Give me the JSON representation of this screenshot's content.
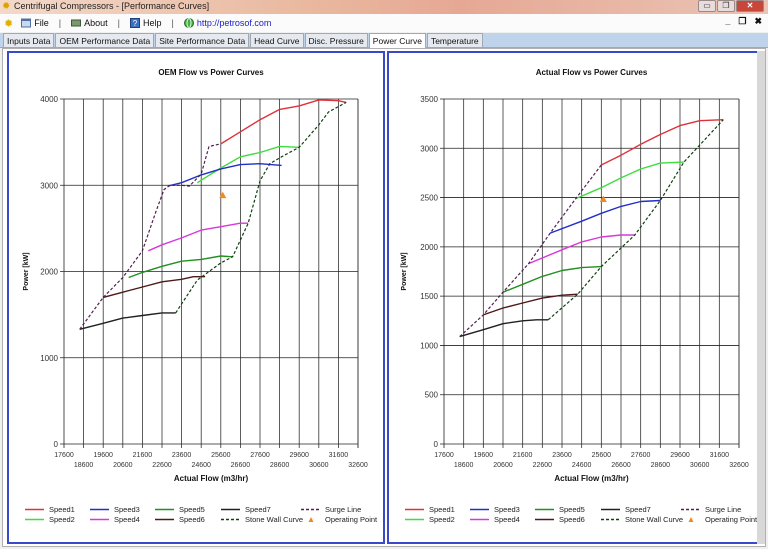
{
  "window": {
    "title": "Centrifugal Compressors - [Performance Curves]",
    "controls": [
      "minimize",
      "restore",
      "close"
    ]
  },
  "menu": {
    "items": [
      {
        "label": "File",
        "icon": "window-icon"
      },
      {
        "label": "About",
        "icon": "about-icon"
      },
      {
        "label": "Help",
        "icon": "help-icon"
      },
      {
        "label": "http://petrosof.com",
        "icon": "globe-icon"
      }
    ],
    "mdi_controls": [
      "_",
      "❐",
      "✖"
    ]
  },
  "tabs": [
    {
      "label": "Inputs Data",
      "active": false
    },
    {
      "label": "OEM Performance Data",
      "active": false
    },
    {
      "label": "Site Performance Data",
      "active": false
    },
    {
      "label": "Head Curve",
      "active": false
    },
    {
      "label": "Disc. Pressure",
      "active": false
    },
    {
      "label": "Power Curve",
      "active": true
    },
    {
      "label": "Temperature",
      "active": false
    }
  ],
  "colors": {
    "Speed1": "#e0303a",
    "Speed2": "#3fdc3f",
    "Speed3": "#2030c8",
    "Speed4": "#d838d8",
    "Speed5": "#209020",
    "Speed6": "#501818",
    "Speed7": "#202020",
    "Surge Line": "#502050",
    "Stone Wall Curve": "#104010",
    "Operating Point": "#f08a1c",
    "panel_border": "#3a49c9"
  },
  "legend": [
    {
      "label": "Speed1",
      "style": "solid"
    },
    {
      "label": "Speed2",
      "style": "solid"
    },
    {
      "label": "Speed3",
      "style": "solid"
    },
    {
      "label": "Speed4",
      "style": "solid"
    },
    {
      "label": "Speed5",
      "style": "solid"
    },
    {
      "label": "Speed6",
      "style": "solid"
    },
    {
      "label": "Speed7",
      "style": "solid"
    },
    {
      "label": "Stone Wall Curve",
      "style": "dashed"
    },
    {
      "label": "Surge Line",
      "style": "dashed"
    },
    {
      "label": "Operating Point",
      "style": "marker"
    }
  ],
  "chart_data": [
    {
      "type": "line",
      "title": "OEM Flow vs Power Curves",
      "xlabel": "Actual Flow (m3/hr)",
      "ylabel": "Power [kW]",
      "xlim": [
        17600,
        32600
      ],
      "ylim": [
        0,
        4000
      ],
      "xticks_top": [
        17600,
        19600,
        21600,
        23600,
        25600,
        27600,
        29600,
        31600
      ],
      "xticks_bottom": [
        18600,
        20600,
        22600,
        24600,
        26600,
        28600,
        30600,
        32600
      ],
      "yticks": [
        0,
        1000,
        2000,
        3000,
        4000
      ],
      "grid": true,
      "legend_position": "bottom",
      "series": [
        {
          "name": "Speed1",
          "points": [
            [
              25600,
              3480
            ],
            [
              26600,
              3620
            ],
            [
              27600,
              3760
            ],
            [
              28600,
              3880
            ],
            [
              29600,
              3920
            ],
            [
              30600,
              3990
            ],
            [
              31600,
              3980
            ],
            [
              32000,
              3960
            ]
          ]
        },
        {
          "name": "Speed2",
          "points": [
            [
              24400,
              3030
            ],
            [
              25600,
              3200
            ],
            [
              26600,
              3330
            ],
            [
              27600,
              3380
            ],
            [
              28600,
              3450
            ],
            [
              29600,
              3440
            ]
          ]
        },
        {
          "name": "Speed3",
          "points": [
            [
              22900,
              2990
            ],
            [
              23600,
              3030
            ],
            [
              24600,
              3120
            ],
            [
              25600,
              3190
            ],
            [
              26600,
              3240
            ],
            [
              27600,
              3250
            ],
            [
              28700,
              3230
            ]
          ]
        },
        {
          "name": "Speed4",
          "points": [
            [
              21900,
              2240
            ],
            [
              22600,
              2310
            ],
            [
              23600,
              2390
            ],
            [
              24600,
              2480
            ],
            [
              25600,
              2520
            ],
            [
              26600,
              2560
            ],
            [
              27000,
              2560
            ]
          ]
        },
        {
          "name": "Speed5",
          "points": [
            [
              20900,
              1930
            ],
            [
              21600,
              1990
            ],
            [
              22600,
              2060
            ],
            [
              23600,
              2120
            ],
            [
              24600,
              2140
            ],
            [
              25600,
              2180
            ],
            [
              26200,
              2170
            ]
          ]
        },
        {
          "name": "Speed6",
          "points": [
            [
              19600,
              1700
            ],
            [
              20600,
              1760
            ],
            [
              21600,
              1820
            ],
            [
              22600,
              1880
            ],
            [
              23600,
              1910
            ],
            [
              24200,
              1940
            ],
            [
              24800,
              1940
            ]
          ]
        },
        {
          "name": "Speed7",
          "points": [
            [
              18400,
              1330
            ],
            [
              19600,
              1400
            ],
            [
              20600,
              1460
            ],
            [
              21600,
              1490
            ],
            [
              22600,
              1520
            ],
            [
              23300,
              1520
            ]
          ]
        },
        {
          "name": "Surge Line",
          "style": "dashed",
          "points": [
            [
              18400,
              1330
            ],
            [
              19600,
              1700
            ],
            [
              20600,
              1930
            ],
            [
              21600,
              2240
            ],
            [
              22300,
              2700
            ],
            [
              22700,
              2950
            ],
            [
              23000,
              3000
            ],
            [
              23600,
              3000
            ],
            [
              24000,
              2990
            ],
            [
              24600,
              3130
            ],
            [
              25000,
              3450
            ],
            [
              25600,
              3480
            ]
          ]
        },
        {
          "name": "Stone Wall Curve",
          "style": "dashed",
          "points": [
            [
              23300,
              1520
            ],
            [
              24400,
              1900
            ],
            [
              25600,
              2100
            ],
            [
              26200,
              2170
            ],
            [
              27000,
              2560
            ],
            [
              27600,
              3050
            ],
            [
              28100,
              3250
            ],
            [
              28700,
              3330
            ],
            [
              29600,
              3440
            ],
            [
              30600,
              3700
            ],
            [
              31100,
              3850
            ],
            [
              32000,
              3960
            ]
          ]
        }
      ],
      "operating_point": {
        "x": 25700,
        "y": 2880
      }
    },
    {
      "type": "line",
      "title": "Actual Flow vs Power Curves",
      "xlabel": "Actual Flow (m3/hr)",
      "ylabel": "Power [kW]",
      "xlim": [
        17600,
        32600
      ],
      "ylim": [
        0,
        3500
      ],
      "xticks_top": [
        17600,
        19600,
        21600,
        23600,
        25600,
        27600,
        29600,
        31600
      ],
      "xticks_bottom": [
        18600,
        20600,
        22600,
        24600,
        26600,
        28600,
        30600,
        32600
      ],
      "yticks": [
        0,
        500,
        1000,
        1500,
        2000,
        2500,
        3000,
        3500
      ],
      "grid": true,
      "legend_position": "bottom",
      "series": [
        {
          "name": "Speed1",
          "points": [
            [
              25600,
              2830
            ],
            [
              26600,
              2930
            ],
            [
              27600,
              3040
            ],
            [
              28600,
              3140
            ],
            [
              29600,
              3230
            ],
            [
              30600,
              3280
            ],
            [
              31800,
              3290
            ]
          ]
        },
        {
          "name": "Speed2",
          "points": [
            [
              24300,
              2490
            ],
            [
              25600,
              2600
            ],
            [
              26600,
              2700
            ],
            [
              27600,
              2790
            ],
            [
              28600,
              2850
            ],
            [
              29800,
              2860
            ]
          ]
        },
        {
          "name": "Speed3",
          "points": [
            [
              23000,
              2140
            ],
            [
              24600,
              2260
            ],
            [
              25600,
              2340
            ],
            [
              26600,
              2410
            ],
            [
              27600,
              2460
            ],
            [
              28600,
              2470
            ]
          ]
        },
        {
          "name": "Speed4",
          "points": [
            [
              21900,
              1830
            ],
            [
              23600,
              1970
            ],
            [
              24600,
              2050
            ],
            [
              25600,
              2100
            ],
            [
              26600,
              2120
            ],
            [
              27300,
              2120
            ]
          ]
        },
        {
          "name": "Speed5",
          "points": [
            [
              20600,
              1540
            ],
            [
              21600,
              1620
            ],
            [
              22600,
              1700
            ],
            [
              23600,
              1760
            ],
            [
              24600,
              1790
            ],
            [
              25600,
              1800
            ]
          ]
        },
        {
          "name": "Speed6",
          "points": [
            [
              19600,
              1310
            ],
            [
              20600,
              1380
            ],
            [
              21600,
              1430
            ],
            [
              22600,
              1480
            ],
            [
              23600,
              1510
            ],
            [
              24400,
              1520
            ]
          ]
        },
        {
          "name": "Speed7",
          "points": [
            [
              18400,
              1090
            ],
            [
              19600,
              1160
            ],
            [
              20600,
              1220
            ],
            [
              21600,
              1250
            ],
            [
              22300,
              1260
            ],
            [
              22900,
              1260
            ]
          ]
        },
        {
          "name": "Surge Line",
          "style": "dashed",
          "points": [
            [
              18400,
              1090
            ],
            [
              19600,
              1310
            ],
            [
              20600,
              1540
            ],
            [
              21900,
              1830
            ],
            [
              23000,
              2140
            ],
            [
              24300,
              2490
            ],
            [
              25600,
              2830
            ]
          ]
        },
        {
          "name": "Stone Wall Curve",
          "style": "dashed",
          "points": [
            [
              22900,
              1260
            ],
            [
              24400,
              1520
            ],
            [
              25600,
              1800
            ],
            [
              27300,
              2120
            ],
            [
              28600,
              2470
            ],
            [
              29800,
              2860
            ],
            [
              31800,
              3290
            ]
          ]
        }
      ],
      "operating_point": {
        "x": 25700,
        "y": 2480
      }
    }
  ]
}
